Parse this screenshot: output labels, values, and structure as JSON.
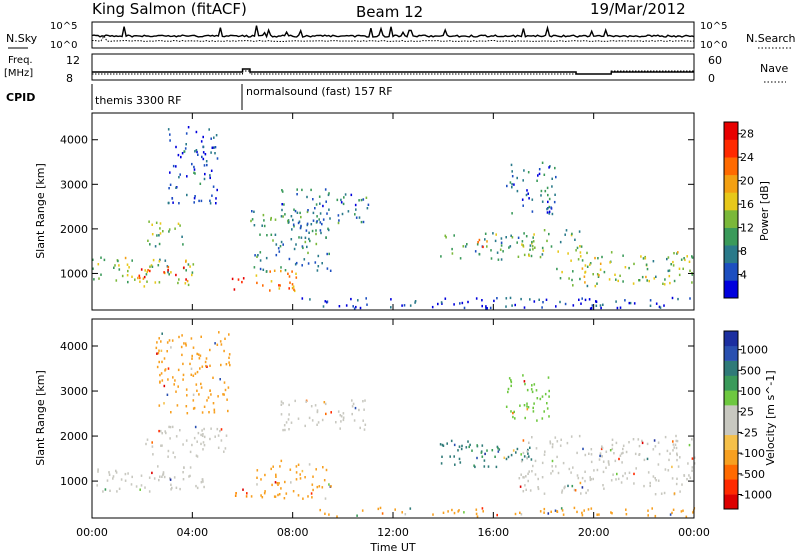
{
  "header": {
    "station": "King Salmon (fitACF)",
    "beam": "Beam 12",
    "date": "19/Mar/2012"
  },
  "top_panels": {
    "nsky_label": "N.Sky",
    "nsky_ticks": [
      "10^5",
      "10^0"
    ],
    "nsearch_label": "N.Search",
    "nsearch_ticks": [
      "10^5",
      "10^0"
    ],
    "freq_label_line1": "Freq.",
    "freq_label_line2": "[MHz]",
    "freq_ticks": [
      "12",
      "8"
    ],
    "nave_label": "Nave",
    "nave_ticks": [
      "60",
      "0"
    ],
    "cpid_label": "CPID",
    "cpid_segments": [
      {
        "text": "themis 3300 RF",
        "start_hour": 0
      },
      {
        "text": "normalsound (fast) 157 RF",
        "start_hour": 6
      }
    ]
  },
  "chart_data": [
    {
      "type": "heatmap",
      "name": "power",
      "ylabel": "Slant Range [km]",
      "xlabel": "Time UT",
      "xlim_hours": [
        0,
        24
      ],
      "ylim": [
        180,
        4600
      ],
      "y_ticks": [
        "1000",
        "2000",
        "3000",
        "4000"
      ],
      "colorbar": {
        "label": "Power [dB]",
        "ticks": [
          "4",
          "8",
          "12",
          "16",
          "20",
          "24",
          "28"
        ],
        "colors": [
          "#0000dd",
          "#1d4fc0",
          "#2a7a8a",
          "#3a9a5a",
          "#7ab83a",
          "#e7c81a",
          "#f3a012",
          "#ff6a00",
          "#ff2a00",
          "#e80000"
        ]
      },
      "regions": [
        {
          "t0": 0.0,
          "t1": 4.2,
          "r0": 700,
          "r1": 1350,
          "level": 0.45
        },
        {
          "t0": 1.8,
          "t1": 3.8,
          "r0": 850,
          "r1": 1150,
          "level": 0.85
        },
        {
          "t0": 2.0,
          "t1": 3.6,
          "r0": 1600,
          "r1": 2200,
          "level": 0.4
        },
        {
          "t0": 5.5,
          "t1": 6.2,
          "r0": 550,
          "r1": 900,
          "level": 0.8
        },
        {
          "t0": 6.3,
          "t1": 8.2,
          "r0": 600,
          "r1": 1150,
          "level": 0.7
        },
        {
          "t0": 6.3,
          "t1": 9.5,
          "r0": 1000,
          "r1": 2400,
          "level": 0.3
        },
        {
          "t0": 7.5,
          "t1": 11.0,
          "r0": 2100,
          "r1": 2900,
          "level": 0.25
        },
        {
          "t0": 3.0,
          "t1": 5.0,
          "r0": 2500,
          "r1": 4300,
          "level": 0.15
        },
        {
          "t0": 13.8,
          "t1": 18.0,
          "r0": 1300,
          "r1": 1900,
          "level": 0.35
        },
        {
          "t0": 15.2,
          "t1": 15.8,
          "r0": 1500,
          "r1": 1800,
          "level": 0.7
        },
        {
          "t0": 17.5,
          "t1": 19.5,
          "r0": 1500,
          "r1": 2000,
          "level": 0.4
        },
        {
          "t0": 18.5,
          "t1": 24.0,
          "r0": 700,
          "r1": 1500,
          "level": 0.45
        },
        {
          "t0": 16.5,
          "t1": 18.5,
          "r0": 2300,
          "r1": 3500,
          "level": 0.2
        },
        {
          "t0": 8.0,
          "t1": 24.0,
          "r0": 200,
          "r1": 450,
          "level": 0.12
        }
      ]
    },
    {
      "type": "heatmap",
      "name": "velocity",
      "ylabel": "Slant Range [km]",
      "xlabel": "Time UT",
      "xlim_hours": [
        0,
        24
      ],
      "ylim": [
        180,
        4600
      ],
      "y_ticks": [
        "1000",
        "2000",
        "3000",
        "4000"
      ],
      "x_ticks": [
        "00:00",
        "04:00",
        "08:00",
        "12:00",
        "16:00",
        "20:00",
        "00:00"
      ],
      "colorbar": {
        "label": "Velocity [m s^-1]",
        "ticks": [
          "1000",
          "500",
          "100",
          "25",
          "-25",
          "-100",
          "-500",
          "-1000"
        ],
        "colors": [
          "#1c2fa0",
          "#2a50b0",
          "#2f7a78",
          "#3a9a5a",
          "#6ec840",
          "#c8c8c0",
          "#c8c8c0",
          "#f5c04a",
          "#f7a020",
          "#ff6a00",
          "#ff2a00",
          "#dd0000"
        ]
      },
      "regions": [
        {
          "t0": 0.0,
          "t1": 4.5,
          "r0": 750,
          "r1": 1350,
          "color": "#c8c8c0"
        },
        {
          "t0": 2.0,
          "t1": 5.5,
          "r0": 1500,
          "r1": 2200,
          "color": "#c8c8c0"
        },
        {
          "t0": 5.6,
          "t1": 6.3,
          "r0": 550,
          "r1": 850,
          "color": "#ff8a00"
        },
        {
          "t0": 6.3,
          "t1": 9.5,
          "r0": 600,
          "r1": 1450,
          "color": "#f7a020"
        },
        {
          "t0": 7.5,
          "t1": 11.0,
          "r0": 2100,
          "r1": 2800,
          "color": "#c8c8c0"
        },
        {
          "t0": 13.8,
          "t1": 17.5,
          "r0": 1300,
          "r1": 1900,
          "color": "#2f7a78"
        },
        {
          "t0": 15.0,
          "t1": 16.5,
          "r0": 1500,
          "r1": 1800,
          "color": "#3a9a5a"
        },
        {
          "t0": 17.0,
          "t1": 24.0,
          "r0": 700,
          "r1": 2000,
          "color": "#c8c8c0"
        },
        {
          "t0": 16.5,
          "t1": 18.3,
          "r0": 2300,
          "r1": 3400,
          "color": "#6ec840"
        },
        {
          "t0": 9.0,
          "t1": 24.0,
          "r0": 200,
          "r1": 400,
          "color": "#f7a020"
        },
        {
          "t0": 2.5,
          "t1": 5.5,
          "r0": 2500,
          "r1": 4300,
          "color": "#f7a020"
        }
      ]
    }
  ]
}
